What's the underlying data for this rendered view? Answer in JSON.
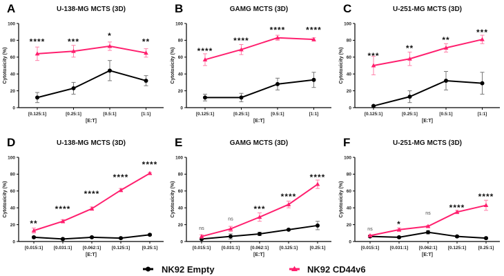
{
  "chart_data": [
    {
      "type": "line",
      "panel": "A",
      "title": "U-138-MG MCTS (3D)",
      "xlabel": "[E:T]",
      "ylabel": "Cytotoxicity (%)",
      "ylim": [
        0,
        100
      ],
      "yticks": [
        0,
        20,
        40,
        60,
        80,
        100
      ],
      "categories": [
        "[0.125:1]",
        "[0.25:1]",
        "[0.5:1]",
        "[1:1]"
      ],
      "series": [
        {
          "name": "NK92 Empty",
          "values": [
            12,
            23,
            44,
            32
          ],
          "errors": [
            6,
            7,
            12,
            6
          ]
        },
        {
          "name": "NK92 CD44v6",
          "values": [
            64,
            67,
            73,
            65
          ],
          "errors": [
            8,
            7,
            5,
            5
          ]
        }
      ],
      "significance": [
        "****",
        "***",
        "*",
        "**"
      ],
      "sig_y": [
        80,
        80,
        87,
        80
      ]
    },
    {
      "type": "line",
      "panel": "B",
      "title": "GAMG MCTS (3D)",
      "xlabel": "[E:T]",
      "ylabel": "Cytotoxicity (%)",
      "ylim": [
        0,
        100
      ],
      "yticks": [
        0,
        20,
        40,
        60,
        80,
        100
      ],
      "categories": [
        "[0.125:1]",
        "[0.25:1]",
        "[0.5:1]",
        "[1:1]"
      ],
      "series": [
        {
          "name": "NK92 Empty",
          "values": [
            12,
            12,
            28,
            33
          ],
          "errors": [
            4,
            5,
            7,
            9
          ]
        },
        {
          "name": "NK92 CD44v6",
          "values": [
            57,
            69,
            83,
            81
          ],
          "errors": [
            7,
            6,
            3,
            2
          ]
        }
      ],
      "significance": [
        "****",
        "****",
        "****",
        "****"
      ],
      "sig_y": [
        69,
        81,
        94,
        94
      ]
    },
    {
      "type": "line",
      "panel": "C",
      "title": "U-251-MG MCTS (3D)",
      "xlabel": "[E:T]",
      "ylabel": "Cytotoxicity (%)",
      "ylim": [
        0,
        100
      ],
      "yticks": [
        0,
        20,
        40,
        60,
        80,
        100
      ],
      "categories": [
        "[0.125:1]",
        "[0.25:1]",
        "[0.5:1]",
        "[1:1]"
      ],
      "series": [
        {
          "name": "NK92 Empty",
          "values": [
            2,
            13,
            32,
            29
          ],
          "errors": [
            1,
            7,
            11,
            13
          ]
        },
        {
          "name": "NK92 CD44v6",
          "values": [
            50,
            58,
            71,
            81
          ],
          "errors": [
            11,
            8,
            5,
            5
          ]
        }
      ],
      "significance": [
        "***",
        "**",
        "**",
        "***"
      ],
      "sig_y": [
        63,
        72,
        82,
        91
      ]
    },
    {
      "type": "line",
      "panel": "D",
      "title": "U-138-MG MCTS (3D)",
      "xlabel": "[E:T]",
      "ylabel": "Cytotoxicity (%)",
      "ylim": [
        0,
        100
      ],
      "yticks": [
        0,
        20,
        40,
        60,
        80,
        100
      ],
      "categories": [
        "[0.015:1]",
        "[0.031:1]",
        "[0.062:1]",
        "[0.125:1]",
        "[0.25:1]"
      ],
      "series": [
        {
          "name": "NK92 Empty",
          "values": [
            5,
            3,
            5,
            4,
            8
          ],
          "errors": [
            1,
            1,
            1,
            1,
            1
          ]
        },
        {
          "name": "NK92 CD44v6",
          "values": [
            13,
            24,
            39,
            61,
            81
          ],
          "errors": [
            3,
            2,
            2,
            2,
            1
          ]
        }
      ],
      "significance": [
        "**",
        "****",
        "****",
        "****",
        "****"
      ],
      "sig_y": [
        23,
        40,
        58,
        78,
        93
      ]
    },
    {
      "type": "line",
      "panel": "E",
      "title": "GAMG MCTS (3D)",
      "xlabel": "[E:T]",
      "ylabel": "Cytotoxicity (%)",
      "ylim": [
        0,
        100
      ],
      "yticks": [
        0,
        20,
        40,
        60,
        80,
        100
      ],
      "categories": [
        "[0.015:1]",
        "[0.031:1]",
        "[0.062:1]",
        "[0.125:1]",
        "[0.25:1]"
      ],
      "series": [
        {
          "name": "NK92 Empty",
          "values": [
            3,
            6,
            9,
            14,
            19
          ],
          "errors": [
            1,
            3,
            2,
            1,
            5
          ]
        },
        {
          "name": "NK92 CD44v6",
          "values": [
            6,
            15,
            29,
            44,
            68
          ],
          "errors": [
            2,
            3,
            5,
            4,
            5
          ]
        }
      ],
      "significance": [
        "ns",
        "ns",
        "***",
        "****",
        "****"
      ],
      "sig_y": [
        14,
        25,
        40,
        55,
        78
      ]
    },
    {
      "type": "line",
      "panel": "F",
      "title": "U-251-MG MCTS (3D)",
      "xlabel": "[E:T]",
      "ylabel": "Cytotoxicity (%)",
      "ylim": [
        0,
        100
      ],
      "yticks": [
        0,
        20,
        40,
        60,
        80,
        100
      ],
      "categories": [
        "[0.015:1]",
        "[0.031:1]",
        "[0.062:1]",
        "[0.125:1]",
        "[0.25:1]"
      ],
      "series": [
        {
          "name": "NK92 Empty",
          "values": [
            6,
            5,
            11,
            6,
            4
          ],
          "errors": [
            1,
            1,
            2,
            1,
            1
          ]
        },
        {
          "name": "NK92 CD44v6",
          "values": [
            7,
            14,
            18,
            35,
            43
          ],
          "errors": [
            1,
            2,
            1,
            2,
            6
          ]
        }
      ],
      "significance": [
        "ns",
        "*",
        "ns",
        "****",
        "****"
      ],
      "sig_y": [
        13,
        22,
        32,
        42,
        55
      ]
    }
  ],
  "legend": {
    "placement": "bottom",
    "items": [
      {
        "label": "NK92 Empty",
        "color": "#000000",
        "marker": "circle"
      },
      {
        "label": "NK92 CD44v6",
        "color": "#ff1f6e",
        "marker": "triangle"
      }
    ]
  },
  "colors": {
    "empty": "#000000",
    "empty_error": "#777777",
    "cd44v6": "#ff1f6e",
    "cd44v6_error": "#ff7fa8"
  }
}
